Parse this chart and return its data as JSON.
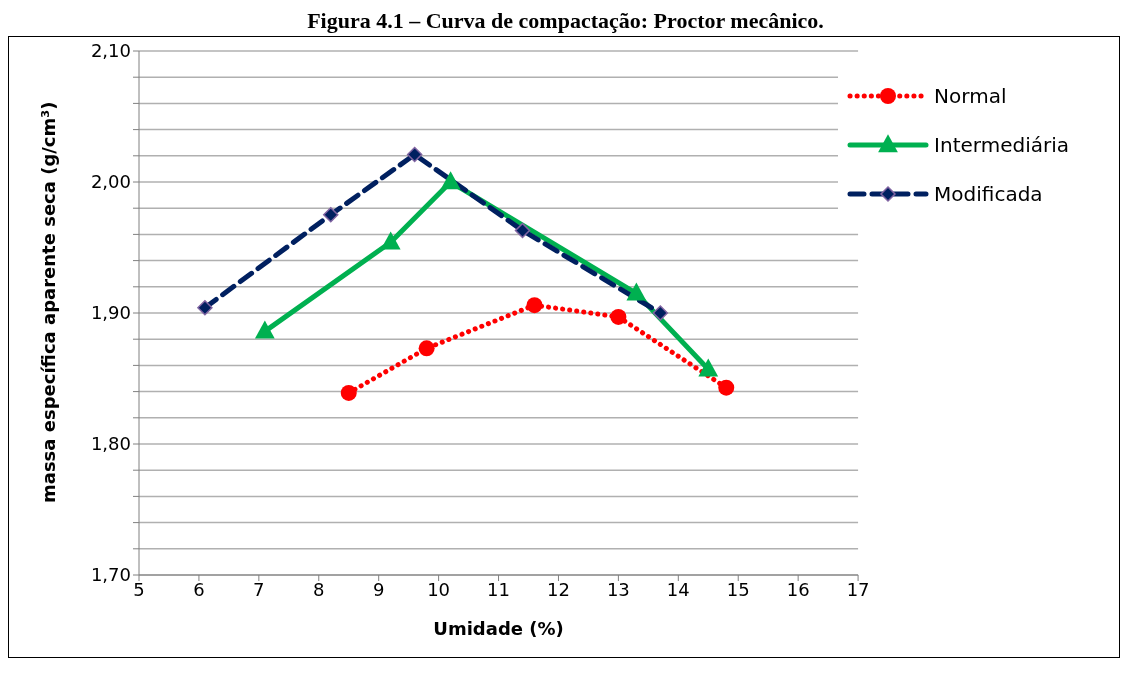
{
  "chart_data": {
    "type": "line",
    "title": "Figura 4.1 – Curva de compactação: Proctor mecânico.",
    "xlabel": "Umidade (%)",
    "ylabel": "massa específica aparente seca (g/cm³)",
    "xlim": [
      5,
      17
    ],
    "xticks": [
      5,
      6,
      7,
      8,
      9,
      10,
      11,
      12,
      13,
      14,
      15,
      16,
      17
    ],
    "ylim": [
      1.7,
      2.1
    ],
    "yticks": [
      {
        "value": 1.7,
        "label": "1,70"
      },
      {
        "value": 1.72,
        "label": null
      },
      {
        "value": 1.74,
        "label": null
      },
      {
        "value": 1.76,
        "label": null
      },
      {
        "value": 1.78,
        "label": null
      },
      {
        "value": 1.8,
        "label": "1,80"
      },
      {
        "value": 1.82,
        "label": null
      },
      {
        "value": 1.84,
        "label": null
      },
      {
        "value": 1.86,
        "label": null
      },
      {
        "value": 1.88,
        "label": null
      },
      {
        "value": 1.9,
        "label": "1,90"
      },
      {
        "value": 1.92,
        "label": null
      },
      {
        "value": 1.94,
        "label": null
      },
      {
        "value": 1.96,
        "label": null
      },
      {
        "value": 1.98,
        "label": null
      },
      {
        "value": 2.0,
        "label": "2,00"
      },
      {
        "value": 2.02,
        "label": null
      },
      {
        "value": 2.04,
        "label": null
      },
      {
        "value": 2.06,
        "label": null
      },
      {
        "value": 2.08,
        "label": null
      },
      {
        "value": 2.1,
        "label": "2,10"
      }
    ],
    "grid": "y",
    "legend": "top right",
    "series": [
      {
        "name": "Normal",
        "color": "#ff0000",
        "marker": "circle",
        "line_style": "dotted",
        "x": [
          8.5,
          9.8,
          11.6,
          13.0,
          14.8
        ],
        "values": [
          1.839,
          1.873,
          1.906,
          1.897,
          1.843
        ]
      },
      {
        "name": "Intermediária",
        "color": "#00b050",
        "marker": "triangle",
        "line_style": "solid",
        "x": [
          7.1,
          9.2,
          10.2,
          13.3,
          14.5
        ],
        "values": [
          1.886,
          1.954,
          2.0,
          1.915,
          1.857
        ]
      },
      {
        "name": "Modificada",
        "color": "#002060",
        "marker": "diamond",
        "line_style": "dashed",
        "x": [
          6.1,
          8.2,
          9.6,
          11.4,
          13.7
        ],
        "values": [
          1.904,
          1.975,
          2.021,
          1.963,
          1.9
        ]
      }
    ]
  }
}
